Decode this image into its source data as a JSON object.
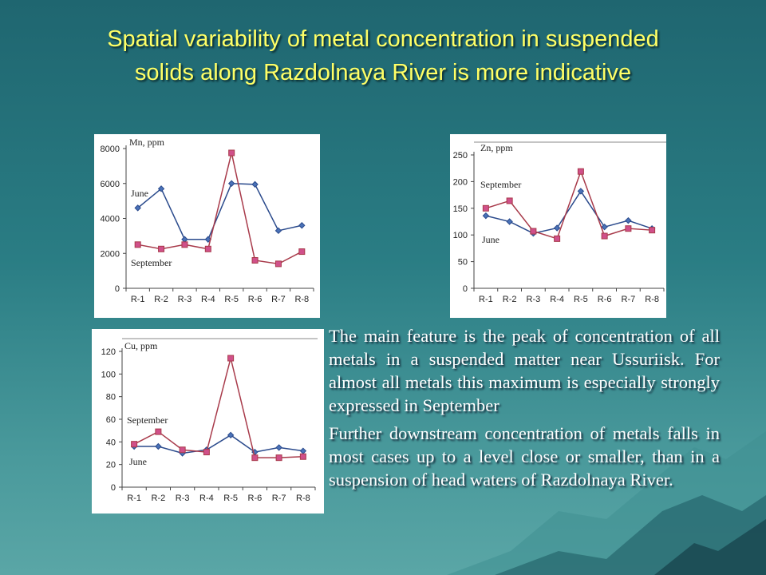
{
  "title": {
    "line1": "Spatial variability of metal concentration in suspended",
    "line2": "solids along Razdolnaya River is more indicative"
  },
  "paragraphs": [
    "The main feature is the peak of concentration of all metals in a suspended matter near Ussuriisk. For almost all metals this maximum is especially strongly expressed in September",
    "Further downstream concentration of metals falls in most cases up to a level close or smaller, than in a suspension of head waters of Razdolnaya River."
  ],
  "colors": {
    "june": "#2a4a8c",
    "september": "#a83a4a",
    "september_marker": "#d0508a",
    "title": "#ffff66",
    "background": "#2a7d84"
  },
  "chart_data": [
    {
      "id": "mn",
      "type": "line",
      "title": "Mn, ppm",
      "categories": [
        "R-1",
        "R-2",
        "R-3",
        "R-4",
        "R-5",
        "R-6",
        "R-7",
        "R-8"
      ],
      "ylim": [
        0,
        8000
      ],
      "yticks": [
        0,
        2000,
        4000,
        6000,
        8000
      ],
      "grid": false,
      "series": [
        {
          "name": "June",
          "marker": "diamond",
          "values": [
            4600,
            5700,
            2800,
            2800,
            6000,
            5950,
            3300,
            3600
          ]
        },
        {
          "name": "September",
          "marker": "square",
          "values": [
            2500,
            2250,
            2500,
            2250,
            7750,
            1600,
            1400,
            2100
          ]
        }
      ]
    },
    {
      "id": "zn",
      "type": "line",
      "title": "Zn, ppm",
      "categories": [
        "R-1",
        "R-2",
        "R-3",
        "R-4",
        "R-5",
        "R-6",
        "R-7",
        "R-8"
      ],
      "ylim": [
        0,
        250
      ],
      "yticks": [
        0,
        50,
        100,
        150,
        200,
        250
      ],
      "grid": false,
      "series": [
        {
          "name": "June",
          "marker": "diamond",
          "values": [
            136,
            125,
            103,
            113,
            182,
            115,
            127,
            112
          ]
        },
        {
          "name": "September",
          "marker": "square",
          "values": [
            150,
            164,
            107,
            93,
            219,
            98,
            112,
            109
          ]
        }
      ]
    },
    {
      "id": "cu",
      "type": "line",
      "title": "Cu, ppm",
      "categories": [
        "R-1",
        "R-2",
        "R-3",
        "R-4",
        "R-5",
        "R-6",
        "R-7",
        "R-8"
      ],
      "ylim": [
        0,
        120
      ],
      "yticks": [
        0,
        20,
        40,
        60,
        80,
        100,
        120
      ],
      "grid": false,
      "series": [
        {
          "name": "June",
          "marker": "diamond",
          "values": [
            36,
            36,
            30,
            33,
            46,
            31,
            35,
            32
          ]
        },
        {
          "name": "September",
          "marker": "square",
          "values": [
            38,
            49,
            33,
            31,
            114,
            26,
            26,
            27
          ]
        }
      ]
    }
  ]
}
